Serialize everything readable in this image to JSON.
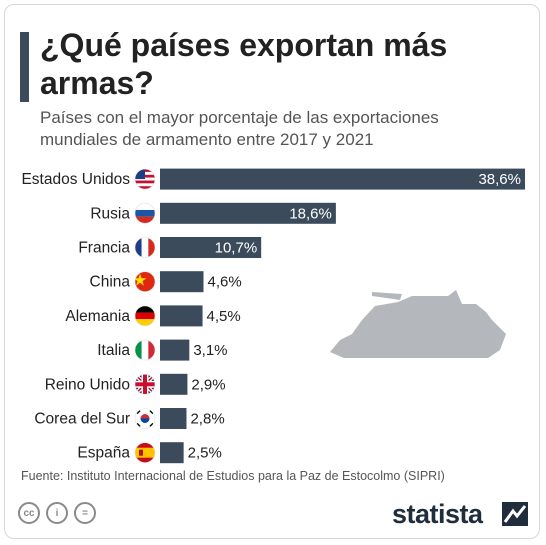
{
  "header": {
    "title": "¿Qué países exportan más armas?",
    "subtitle": "Países con el mayor porcentaje de las exportaciones mundiales de armamento entre 2017 y 2021"
  },
  "colors": {
    "bar": "#3b4b5c",
    "accent": "#3b4b5c",
    "tank": "#b4b8bd"
  },
  "chart_data": {
    "type": "bar",
    "orientation": "horizontal",
    "categories": [
      "Estados Unidos",
      "Rusia",
      "Francia",
      "China",
      "Alemania",
      "Italia",
      "Reino Unido",
      "Corea del Sur",
      "España"
    ],
    "values": [
      38.6,
      18.6,
      10.7,
      4.6,
      4.5,
      3.1,
      2.9,
      2.8,
      2.5
    ],
    "value_labels": [
      "38,6%",
      "18,6%",
      "10,7%",
      "4,6%",
      "4,5%",
      "3,1%",
      "2,9%",
      "2,8%",
      "2,5%"
    ],
    "flags": [
      "us-flag-icon",
      "russia-flag-icon",
      "france-flag-icon",
      "china-flag-icon",
      "germany-flag-icon",
      "italy-flag-icon",
      "uk-flag-icon",
      "south-korea-flag-icon",
      "spain-flag-icon"
    ],
    "xlim": [
      0,
      38.6
    ],
    "grid": false,
    "legend": "none"
  },
  "footer": {
    "source": "Fuente: Instituto Internacional de Estudios para la Paz de Estocolmo (SIPRI)",
    "brand": "statista",
    "license_icons": [
      "cc-icon",
      "by-icon",
      "nd-icon"
    ]
  }
}
